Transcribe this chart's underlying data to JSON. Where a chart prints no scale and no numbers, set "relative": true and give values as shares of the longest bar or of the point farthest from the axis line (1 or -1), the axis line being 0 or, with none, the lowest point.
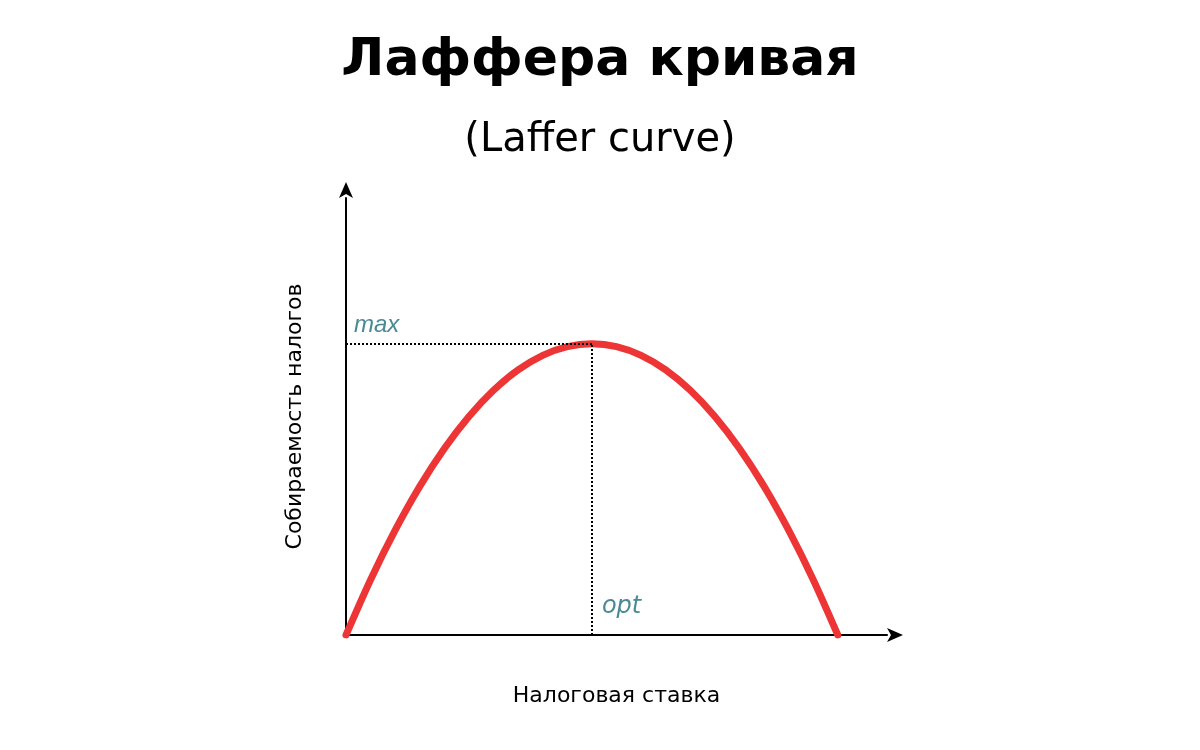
{
  "chart_data": {
    "type": "line",
    "title": "Лаффера кривая",
    "subtitle": "(Laffer curve)",
    "xlabel": "Налоговая ставка",
    "ylabel": "Собираемость налогов",
    "relative": true,
    "categories": [
      null,
      null,
      null,
      null,
      null,
      null,
      null,
      null,
      null,
      null,
      null,
      null,
      null,
      null,
      null,
      null,
      null,
      null,
      null,
      null,
      null,
      null,
      null
    ],
    "series": [
      {
        "color": "#ee3535",
        "values": [
          0,
          0.19,
          0.36,
          0.51,
          0.64,
          0.75,
          0.84,
          0.91,
          0.96,
          0.99,
          1,
          0.99,
          0.96,
          0.91,
          0.84,
          0.75,
          0.64,
          0.51,
          0.36,
          0.19,
          0,
          null,
          null
        ]
      }
    ],
    "ref_lines": [
      {
        "axis": "y",
        "value": 1,
        "label": "max",
        "line_style": "dotted",
        "color": "#000000"
      }
    ],
    "annotations": [
      "opt"
    ],
    "grid": false,
    "marker": "none",
    "line_style": "solid"
  }
}
